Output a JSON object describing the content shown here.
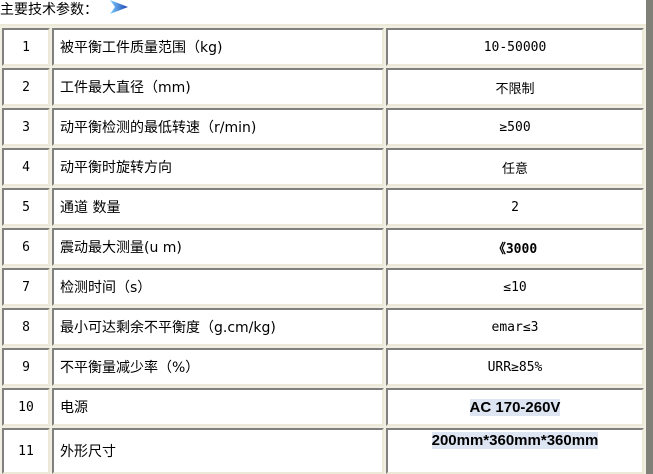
{
  "heading": "主要技术参数：",
  "heading_icon": "blue-arrow-icon",
  "rows": [
    {
      "no": "1",
      "name": "被平衡工件质量范围（kg)",
      "value": "10-50000"
    },
    {
      "no": "2",
      "name": "工件最大直径（mm)",
      "value": "不限制"
    },
    {
      "no": "3",
      "name": "动平衡检测的最低转速（r/min)",
      "value": "≥500"
    },
    {
      "no": "4",
      "name": "动平衡时旋转方向",
      "value": "任意"
    },
    {
      "no": "5",
      "name": "通道 数量",
      "value": "2"
    },
    {
      "no": "6",
      "name": "震动最大测量(u m)",
      "value": "《3000"
    },
    {
      "no": "7",
      "name": "检测时间（s）",
      "value": "≤10"
    },
    {
      "no": "8",
      "name": "最小可达剩余不平衡度（g.cm/kg)",
      "value": "emar≤3"
    },
    {
      "no": "9",
      "name": "不平衡量减少率（%）",
      "value": "URR≥85%"
    },
    {
      "no": "10",
      "name": "电源",
      "value": "AC 170-260V"
    },
    {
      "no": "11",
      "name": "外形尺寸",
      "value": "200mm*360mm*360mm"
    }
  ]
}
